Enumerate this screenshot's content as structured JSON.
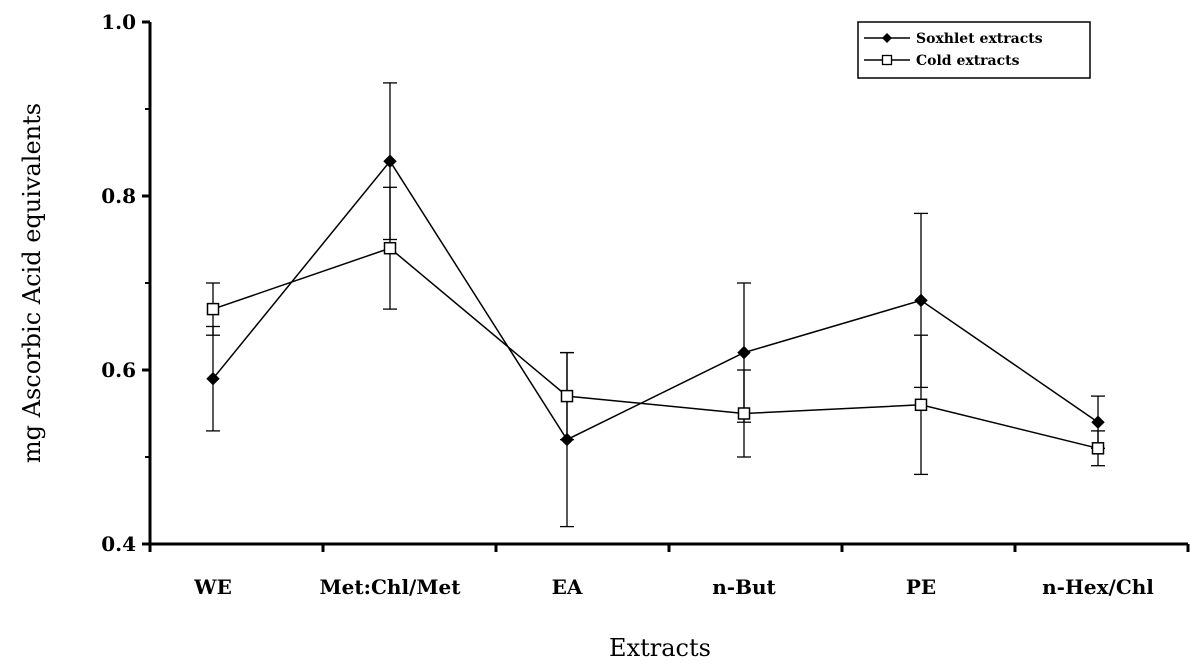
{
  "chart_data": {
    "type": "line",
    "title": "",
    "xlabel": "Extracts",
    "ylabel": "mg Ascorbic Acid equivalents",
    "categories": [
      "WE",
      "Met:Chl/Met",
      "EA",
      "n-But",
      "PE",
      "n-Hex/Chl"
    ],
    "ylim": [
      0.4,
      1.0
    ],
    "yticks": [
      "0.4",
      "0.6",
      "0.8",
      "1.0"
    ],
    "grid": false,
    "legend_position": "top-right",
    "series": [
      {
        "name": "Soxhlet extracts",
        "marker": "filled-diamond",
        "color": "#000000",
        "values": [
          0.59,
          0.84,
          0.52,
          0.62,
          0.68,
          0.54
        ],
        "error": [
          0.06,
          0.09,
          0.1,
          0.08,
          0.1,
          0.03
        ]
      },
      {
        "name": "Cold extracts",
        "marker": "open-square",
        "color": "#000000",
        "values": [
          0.67,
          0.74,
          0.57,
          0.55,
          0.56,
          0.51
        ],
        "error": [
          0.03,
          0.07,
          0.05,
          0.05,
          0.08,
          0.02
        ]
      }
    ]
  }
}
